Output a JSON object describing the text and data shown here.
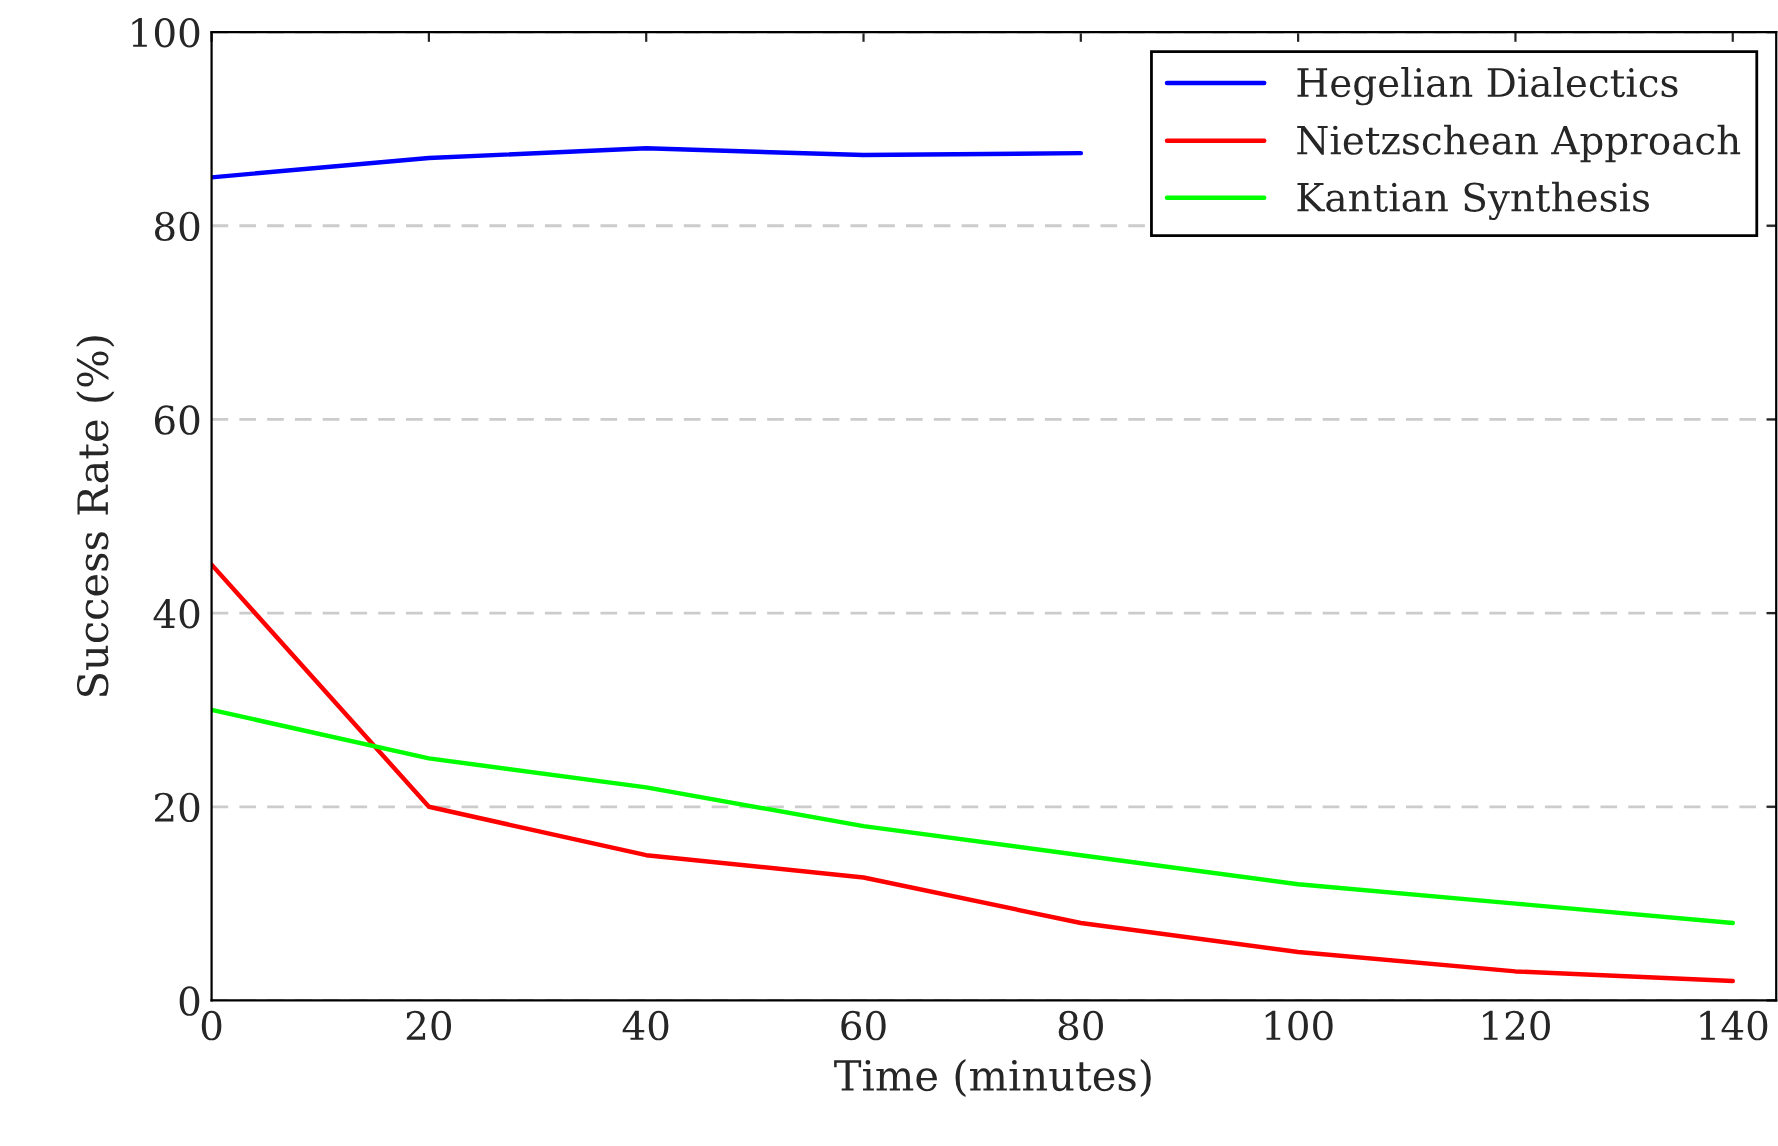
{
  "chart_data": {
    "type": "line",
    "xlabel": "Time (minutes)",
    "ylabel": "Success Rate (%)",
    "x": [
      0,
      20,
      40,
      60,
      80,
      100,
      120,
      140
    ],
    "series": [
      {
        "name": "Hegelian Dialectics",
        "color": "#0000ff",
        "values": [
          85,
          87,
          88,
          87.3,
          87.5,
          null,
          null,
          null
        ]
      },
      {
        "name": "Nietzschean Approach",
        "color": "#ff0000",
        "values": [
          45,
          20,
          15,
          12.7,
          8,
          5,
          3,
          2
        ]
      },
      {
        "name": "Kantian Synthesis",
        "color": "#00ff00",
        "values": [
          30,
          25,
          22,
          18,
          15,
          12,
          10,
          8
        ]
      }
    ],
    "xlim": [
      0,
      144
    ],
    "ylim": [
      0,
      100
    ],
    "xticks": [
      0,
      20,
      40,
      60,
      80,
      100,
      120,
      140
    ],
    "yticks": [
      0,
      20,
      40,
      60,
      80,
      100
    ],
    "grid": "y",
    "legend": "top right",
    "line_style": "solid",
    "marker": "none"
  }
}
